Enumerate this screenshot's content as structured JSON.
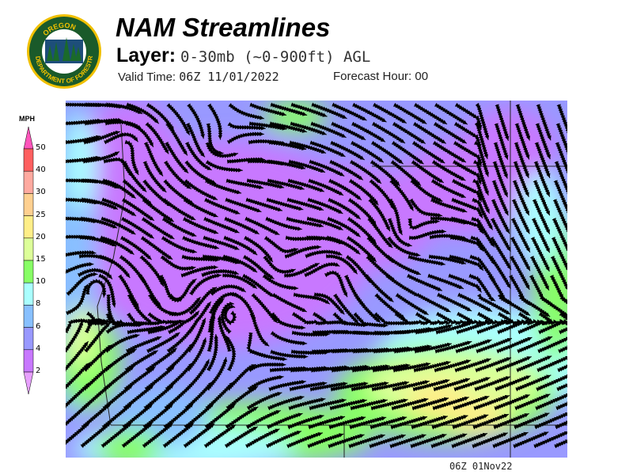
{
  "header": {
    "title": "NAM Streamlines",
    "layer_label": "Layer:",
    "layer_value": "0-30mb (~0-900ft) AGL",
    "valid_label": "Valid Time:",
    "valid_value": "06Z 11/01/2022",
    "forecast_label": "Forecast Hour:",
    "forecast_value": "00"
  },
  "logo": {
    "text_top": "OREGON",
    "text_bottom": "DEPARTMENT OF FORESTRY"
  },
  "colorbar": {
    "unit": "MPH",
    "labels": [
      "50",
      "40",
      "30",
      "25",
      "20",
      "15",
      "10",
      "8",
      "6",
      "4",
      "2"
    ],
    "colors": [
      "#ff6060",
      "#ffaaa0",
      "#ffd090",
      "#ffee88",
      "#ddff99",
      "#88ff66",
      "#aaffff",
      "#88c0ff",
      "#9999ff",
      "#c878ff"
    ],
    "over_color": "#ff55bb",
    "under_color": "#e8a0ff"
  },
  "footer": {
    "timestamp": "06Z 01Nov22"
  }
}
